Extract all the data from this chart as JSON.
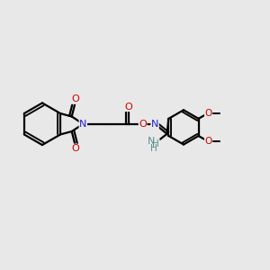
{
  "bg_color": "#e8e8e8",
  "bond_width": 1.6,
  "atom_colors": {
    "N_blue": "#2222cc",
    "O_red": "#cc0000",
    "N_teal": "#5a9090",
    "C_black": "#000000"
  },
  "font_size": 7.5,
  "xlim": [
    0,
    12
  ],
  "ylim": [
    0,
    10
  ]
}
